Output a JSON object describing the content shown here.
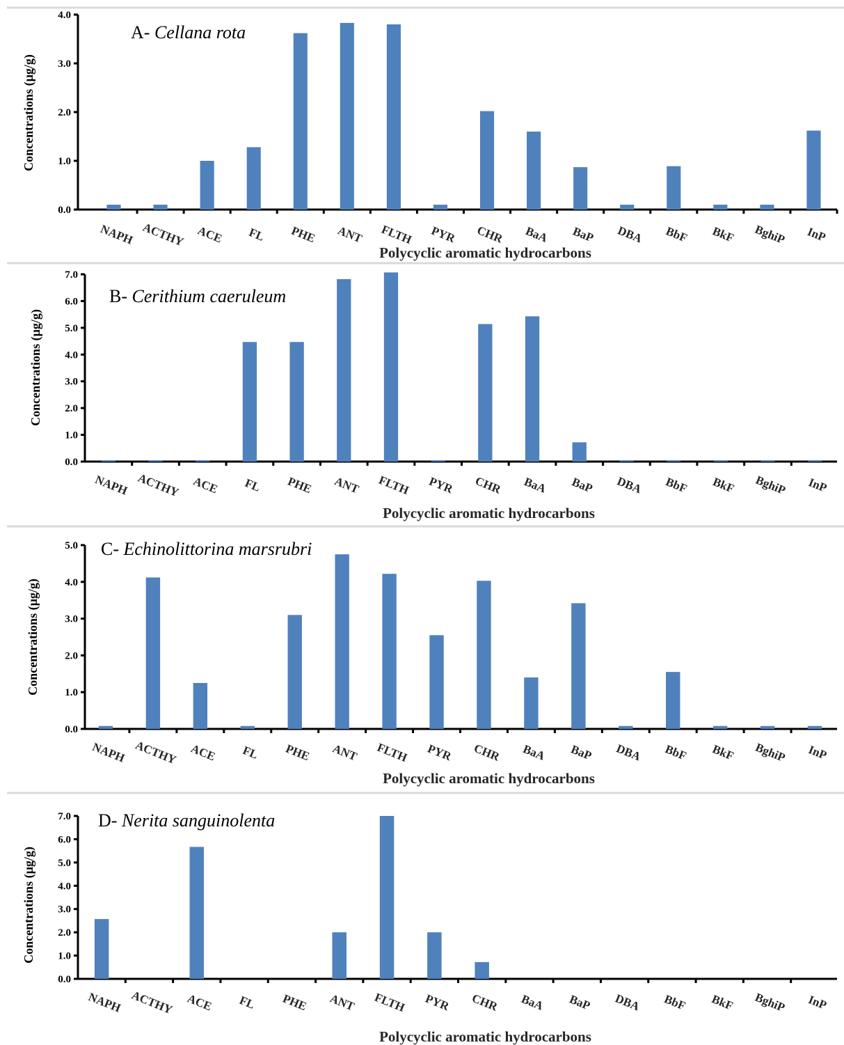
{
  "colors": {
    "bar": "#4f81bd",
    "axis": "#000000",
    "separator": "#d9d9d9"
  },
  "chart_data": [
    {
      "type": "bar",
      "title_prefix": "A- ",
      "title_species": "Cellana rota",
      "xlabel": "Polycyclic aromatic hydrocarbons",
      "ylabel": "Concentrations (µg/g)",
      "categories": [
        "NAPH",
        "ACTHY",
        "ACE",
        "FL",
        "PHE",
        "ANT",
        "FLTH",
        "PYR",
        "CHR",
        "BaA",
        "BaP",
        "DBA",
        "BbF",
        "BkF",
        "BghiP",
        "InP"
      ],
      "values": [
        0.1,
        0.1,
        1.0,
        1.28,
        3.62,
        3.83,
        3.8,
        0.1,
        2.02,
        1.6,
        0.87,
        0.1,
        0.89,
        0.1,
        0.1,
        1.62
      ],
      "ylim": [
        0,
        4
      ],
      "yticks": [
        "0.0",
        "1.0",
        "2.0",
        "3.0",
        "4.0"
      ],
      "legend": "none"
    },
    {
      "type": "bar",
      "title_prefix": "B- ",
      "title_species": "Cerithium caeruleum",
      "xlabel": "Polycyclic aromatic hydrocarbons",
      "ylabel": "Concentrations (µg/g)",
      "categories": [
        "NAPH",
        "ACTHY",
        "ACE",
        "FL",
        "PHE",
        "ANT",
        "FLTH",
        "PYR",
        "CHR",
        "BaA",
        "BaP",
        "DBA",
        "BbF",
        "BkF",
        "BghiP",
        "InP"
      ],
      "values": [
        0.05,
        0.05,
        0.05,
        4.47,
        4.47,
        6.82,
        7.07,
        0.05,
        5.14,
        5.43,
        0.72,
        0.05,
        0.05,
        0.05,
        0.05,
        0.05
      ],
      "ylim": [
        0,
        7
      ],
      "yticks": [
        "0.0",
        "1.0",
        "2.0",
        "3.0",
        "4.0",
        "5.0",
        "6.0",
        "7.0"
      ],
      "legend": "none"
    },
    {
      "type": "bar",
      "title_prefix": "C- ",
      "title_species": "Echinolittorina marsrubri",
      "xlabel": "Polycyclic aromatic hydrocarbons",
      "ylabel": "Concentrations (µg/g)",
      "categories": [
        "NAPH",
        "ACTHY",
        "ACE",
        "FL",
        "PHE",
        "ANT",
        "FLTH",
        "PYR",
        "CHR",
        "BaA",
        "BaP",
        "DBA",
        "BbF",
        "BkF",
        "BghiP",
        "InP"
      ],
      "values": [
        0.08,
        4.12,
        1.25,
        0.08,
        3.1,
        4.75,
        4.22,
        2.55,
        4.03,
        1.4,
        3.42,
        0.08,
        1.55,
        0.08,
        0.08,
        0.08
      ],
      "ylim": [
        0,
        5
      ],
      "yticks": [
        "0.0",
        "1.0",
        "2.0",
        "3.0",
        "4.0",
        "5.0"
      ],
      "legend": "none"
    },
    {
      "type": "bar",
      "title_prefix": "D- ",
      "title_species": "Nerita sanguinolenta",
      "xlabel": "Polycyclic aromatic hydrocarbons",
      "ylabel": "Concentrations (µg/g)",
      "categories": [
        "NAPH",
        "ACTHY",
        "ACE",
        "FL",
        "PHE",
        "ANT",
        "FLTH",
        "PYR",
        "CHR",
        "BaA",
        "BaP",
        "DBA",
        "BbF",
        "BkF",
        "BghiP",
        "InP"
      ],
      "values": [
        2.57,
        0,
        5.67,
        0,
        0,
        2.0,
        7.0,
        2.0,
        0.72,
        0,
        0,
        0,
        0,
        0,
        0,
        0
      ],
      "ylim": [
        0,
        7
      ],
      "yticks": [
        "0.0",
        "1.0",
        "2.0",
        "3.0",
        "4.0",
        "5.0",
        "6.0",
        "7.0"
      ],
      "legend": "none"
    }
  ]
}
